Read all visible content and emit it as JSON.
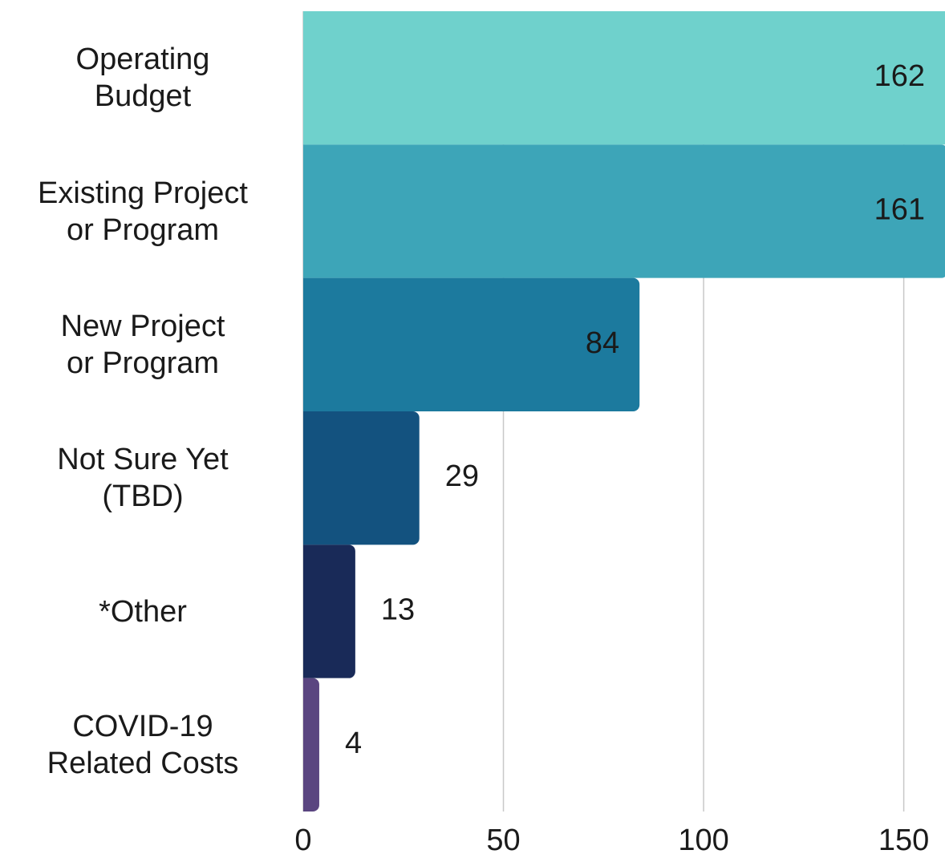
{
  "chart_data": {
    "type": "bar",
    "orientation": "horizontal",
    "categories": [
      "Operating\nBudget",
      "Existing Project\nor Program",
      "New Project\nor Program",
      "Not Sure Yet\n(TBD)",
      "*Other",
      "COVID-19\nRelated Costs"
    ],
    "values": [
      162,
      161,
      84,
      29,
      13,
      4
    ],
    "colors": [
      "#6fd1cc",
      "#3da5b8",
      "#1c7a9e",
      "#13527f",
      "#192a58",
      "#5a4580"
    ],
    "xlim": [
      0,
      160
    ],
    "xticks": [
      0,
      50,
      100,
      150
    ],
    "grid": true
  }
}
